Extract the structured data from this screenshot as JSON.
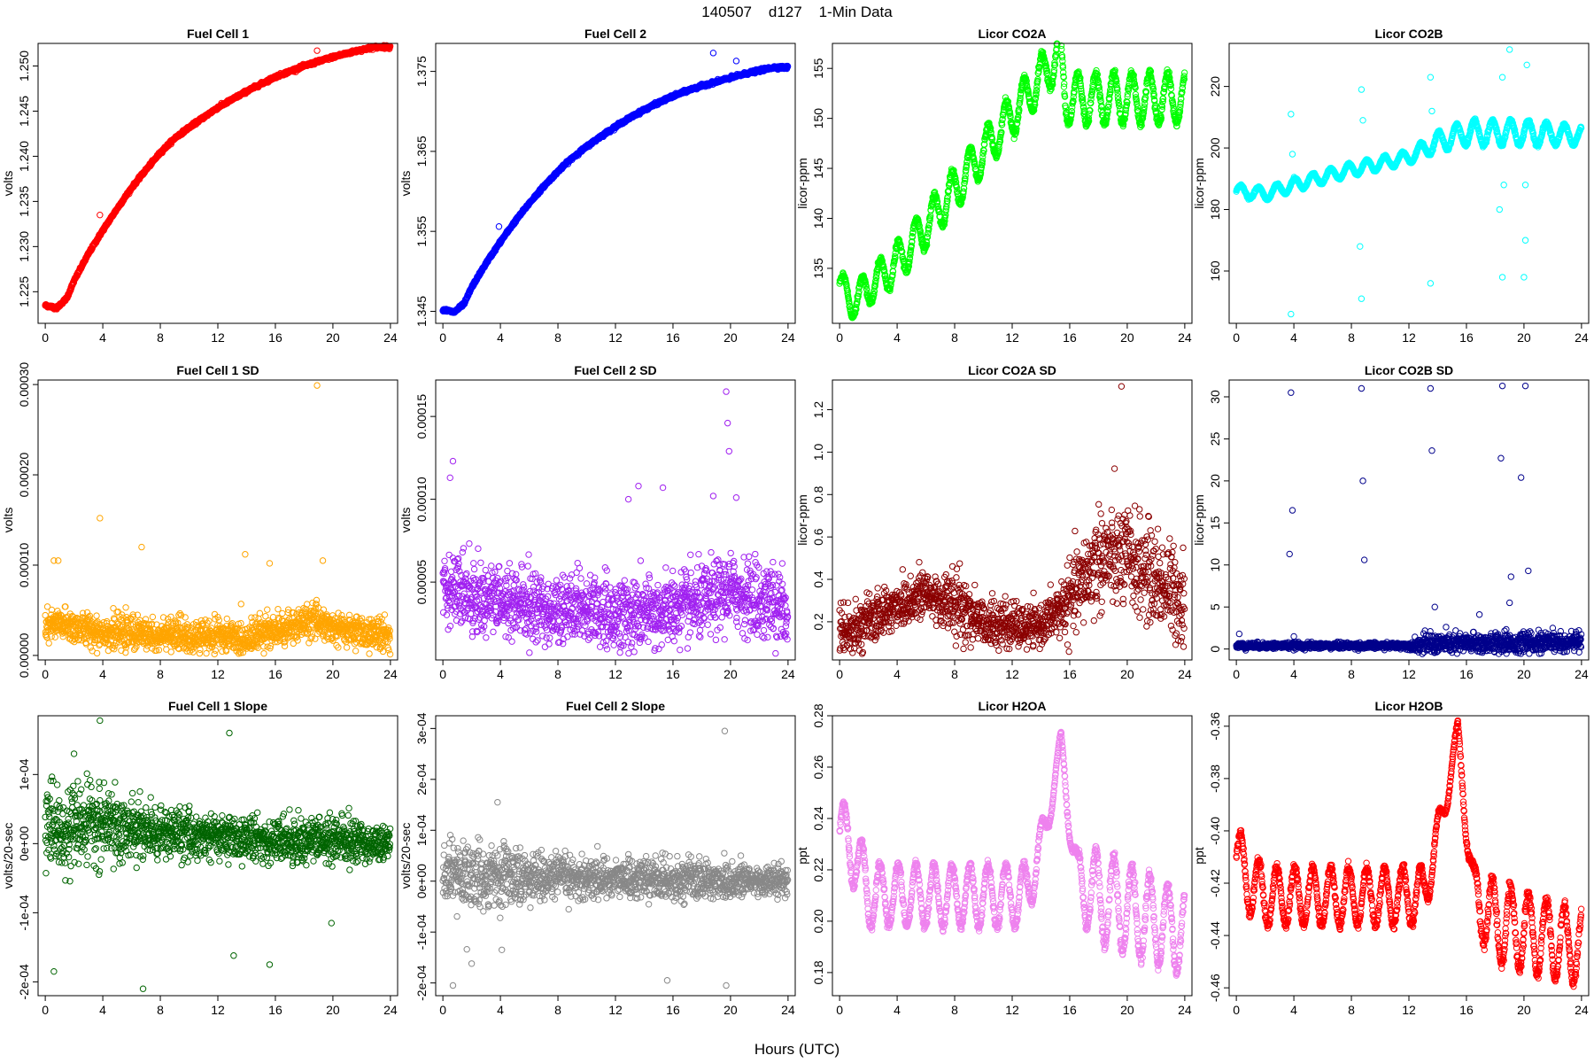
{
  "figure": {
    "title": "140507    d127    1-Min Data",
    "xlabel": "Hours (UTC)"
  },
  "chart_data": [
    {
      "id": "fc1",
      "type": "scatter",
      "title": "Fuel Cell 1",
      "ylabel": "volts",
      "color": "#ff0000",
      "xlim": [
        -0.5,
        24.5
      ],
      "ylim": [
        1.2215,
        1.2525
      ],
      "x_ticks": [
        "0",
        "4",
        "8",
        "12",
        "16",
        "20",
        "24"
      ],
      "y_ticks": [
        {
          "v": 1.225,
          "label": "1.225"
        },
        {
          "v": 1.23,
          "label": "1.230"
        },
        {
          "v": 1.235,
          "label": "1.235"
        },
        {
          "v": 1.24,
          "label": "1.240"
        },
        {
          "v": 1.245,
          "label": "1.245"
        },
        {
          "v": 1.25,
          "label": "1.250"
        }
      ],
      "x": [
        0,
        0.8,
        1.5,
        2,
        3,
        4,
        5,
        6,
        7,
        8,
        9,
        10,
        11,
        12,
        13,
        14,
        15,
        16,
        17,
        18,
        19,
        20,
        21,
        22,
        23,
        24
      ],
      "y": [
        1.2235,
        1.2232,
        1.2243,
        1.2262,
        1.2292,
        1.2318,
        1.2342,
        1.2365,
        1.2385,
        1.2404,
        1.242,
        1.2432,
        1.2443,
        1.2454,
        1.2463,
        1.2472,
        1.248,
        1.2488,
        1.2494,
        1.25,
        1.2505,
        1.251,
        1.2514,
        1.2518,
        1.2521,
        1.2521
      ],
      "outliers": [
        [
          3.8,
          1.2335
        ],
        [
          18.9,
          1.2517
        ],
        [
          20.5,
          1.2512
        ]
      ]
    },
    {
      "id": "fc2",
      "type": "scatter",
      "title": "Fuel Cell 2",
      "ylabel": "volts",
      "color": "#0000ff",
      "xlim": [
        -0.5,
        24.5
      ],
      "ylim": [
        1.3435,
        1.3785
      ],
      "x_ticks": [
        "0",
        "4",
        "8",
        "12",
        "16",
        "20",
        "24"
      ],
      "y_ticks": [
        {
          "v": 1.345,
          "label": "1.345"
        },
        {
          "v": 1.355,
          "label": "1.355"
        },
        {
          "v": 1.365,
          "label": "1.365"
        },
        {
          "v": 1.375,
          "label": "1.375"
        }
      ],
      "x": [
        0,
        0.8,
        1.5,
        2,
        3,
        4,
        5,
        6,
        7,
        8,
        9,
        10,
        11,
        12,
        13,
        14,
        15,
        16,
        17,
        18,
        19,
        20,
        21,
        22,
        23,
        24
      ],
      "y": [
        1.3452,
        1.3449,
        1.346,
        1.348,
        1.351,
        1.3537,
        1.3562,
        1.3585,
        1.3606,
        1.3625,
        1.3642,
        1.3656,
        1.3669,
        1.3681,
        1.3692,
        1.3702,
        1.3711,
        1.3719,
        1.3726,
        1.3732,
        1.3737,
        1.3742,
        1.3747,
        1.3751,
        1.3755,
        1.3755
      ],
      "outliers": [
        [
          3.9,
          1.3556
        ],
        [
          18.8,
          1.3773
        ],
        [
          20.4,
          1.3763
        ]
      ]
    },
    {
      "id": "co2a",
      "type": "scatter",
      "title": "Licor CO2A",
      "ylabel": "licor-ppm",
      "color": "#00ff00",
      "xlim": [
        -0.5,
        24.5
      ],
      "ylim": [
        129.5,
        157.5
      ],
      "x_ticks": [
        "0",
        "4",
        "8",
        "12",
        "16",
        "20",
        "24"
      ],
      "y_ticks": [
        {
          "v": 135,
          "label": "135"
        },
        {
          "v": 140,
          "label": "140"
        },
        {
          "v": 145,
          "label": "145"
        },
        {
          "v": 150,
          "label": "150"
        },
        {
          "v": 155,
          "label": "155"
        }
      ],
      "trend_x": [
        0,
        0.8,
        4,
        15.3,
        15.7,
        24
      ],
      "trend_y": [
        133.5,
        131.5,
        135.5,
        156.5,
        152,
        152
      ],
      "wave_amp": [
        1.5,
        1.5,
        2,
        2.2,
        2.5,
        2.5
      ],
      "wave_period": 1.25
    },
    {
      "id": "co2b",
      "type": "scatter",
      "title": "Licor CO2B",
      "ylabel": "licor-ppm",
      "color": "#00ffff",
      "xlim": [
        -0.5,
        24.5
      ],
      "ylim": [
        143,
        234
      ],
      "x_ticks": [
        "0",
        "4",
        "8",
        "12",
        "16",
        "20",
        "24"
      ],
      "y_ticks": [
        {
          "v": 160,
          "label": "160"
        },
        {
          "v": 180,
          "label": "180"
        },
        {
          "v": 200,
          "label": "200"
        },
        {
          "v": 220,
          "label": "220"
        }
      ],
      "trend_x": [
        0,
        2,
        4,
        8,
        12,
        14,
        16,
        20,
        24
      ],
      "trend_y": [
        186,
        185,
        188,
        193,
        197,
        202,
        205,
        205,
        204
      ],
      "wave_amp": [
        2,
        2,
        2,
        2,
        2,
        3,
        4,
        4,
        3
      ],
      "wave_period": 1.25,
      "outliers": [
        [
          3.8,
          146
        ],
        [
          3.8,
          211
        ],
        [
          3.9,
          198
        ],
        [
          8.7,
          151
        ],
        [
          8.7,
          219
        ],
        [
          8.8,
          209
        ],
        [
          8.6,
          168
        ],
        [
          13.5,
          156
        ],
        [
          13.5,
          223
        ],
        [
          13.6,
          212
        ],
        [
          18.5,
          158
        ],
        [
          18.6,
          188
        ],
        [
          18.5,
          223
        ],
        [
          19.0,
          232
        ],
        [
          20.0,
          158
        ],
        [
          20.1,
          188
        ],
        [
          20.2,
          227
        ],
        [
          18.3,
          180
        ],
        [
          20.1,
          170
        ]
      ]
    },
    {
      "id": "fc1sd",
      "type": "scatter",
      "title": "Fuel Cell 1 SD",
      "ylabel": "volts",
      "color": "#ffa500",
      "xlim": [
        -0.5,
        24.5
      ],
      "ylim": [
        -5e-06,
        0.000305
      ],
      "x_ticks": [
        "0",
        "4",
        "8",
        "12",
        "16",
        "20",
        "24"
      ],
      "y_ticks": [
        {
          "v": 0,
          "label": "0.00000"
        },
        {
          "v": 0.0001,
          "label": "0.00010"
        },
        {
          "v": 0.0002,
          "label": "0.00020"
        },
        {
          "v": 0.0003,
          "label": "0.00030"
        }
      ],
      "base_x": [
        0,
        1,
        3,
        5,
        8,
        12,
        14,
        15,
        16,
        18,
        19,
        20,
        24
      ],
      "base_y": [
        3e-05,
        3.5e-05,
        2.8e-05,
        2.5e-05,
        2.2e-05,
        2e-05,
        1.8e-05,
        2.5e-05,
        2.7e-05,
        3.5e-05,
        4e-05,
        3e-05,
        2.2e-05
      ],
      "spread_x": [
        0,
        24
      ],
      "spread_y": [
        1.5e-05,
        1.5e-05
      ],
      "outliers": [
        [
          0.6,
          0.000105
        ],
        [
          0.9,
          0.000105
        ],
        [
          3.8,
          0.000152
        ],
        [
          6.7,
          0.00012
        ],
        [
          13.9,
          0.000112
        ],
        [
          15.6,
          0.000102
        ],
        [
          19.3,
          0.000105
        ],
        [
          18.9,
          0.000299
        ]
      ]
    },
    {
      "id": "fc2sd",
      "type": "scatter",
      "title": "Fuel Cell 2 SD",
      "ylabel": "volts",
      "color": "#a020f0",
      "xlim": [
        -0.5,
        24.5
      ],
      "ylim": [
        3e-06,
        0.000172
      ],
      "x_ticks": [
        "0",
        "4",
        "8",
        "12",
        "16",
        "20",
        "24"
      ],
      "y_ticks": [
        {
          "v": 5e-05,
          "label": "0.00005"
        },
        {
          "v": 0.0001,
          "label": "0.00010"
        },
        {
          "v": 0.00015,
          "label": "0.00015"
        }
      ],
      "base_x": [
        0,
        1,
        3,
        6,
        10,
        14,
        18,
        20,
        24
      ],
      "base_y": [
        5e-05,
        4.5e-05,
        4e-05,
        3.5e-05,
        3.2e-05,
        3e-05,
        3.7e-05,
        4.5e-05,
        3.3e-05
      ],
      "spread_x": [
        0,
        24
      ],
      "spread_y": [
        1.8e-05,
        1.8e-05
      ],
      "outliers": [
        [
          0.5,
          0.000113
        ],
        [
          0.7,
          0.000123
        ],
        [
          13.6,
          0.000108
        ],
        [
          15.3,
          0.000107
        ],
        [
          12.9,
          0.0001
        ],
        [
          18.8,
          0.000102
        ],
        [
          19.7,
          0.000165
        ],
        [
          19.8,
          0.000146
        ],
        [
          19.9,
          0.000129
        ],
        [
          20.4,
          0.000101
        ]
      ]
    },
    {
      "id": "co2asd",
      "type": "scatter",
      "title": "Licor CO2A SD",
      "ylabel": "licor-ppm",
      "color": "#8b0000",
      "xlim": [
        -0.5,
        24.5
      ],
      "ylim": [
        0.02,
        1.34
      ],
      "x_ticks": [
        "0",
        "4",
        "8",
        "12",
        "16",
        "20",
        "24"
      ],
      "y_ticks": [
        {
          "v": 0.2,
          "label": "0.2"
        },
        {
          "v": 0.4,
          "label": "0.4"
        },
        {
          "v": 0.6,
          "label": "0.6"
        },
        {
          "v": 0.8,
          "label": "0.8"
        },
        {
          "v": 1.0,
          "label": "1.0"
        },
        {
          "v": 1.2,
          "label": "1.2"
        }
      ],
      "base_x": [
        0,
        2,
        4,
        6,
        8,
        10,
        12,
        14,
        16,
        18,
        20,
        22,
        24
      ],
      "base_y": [
        0.15,
        0.2,
        0.28,
        0.33,
        0.28,
        0.2,
        0.17,
        0.18,
        0.3,
        0.5,
        0.5,
        0.4,
        0.3
      ],
      "spread_x": [
        0,
        8,
        14,
        18,
        24
      ],
      "spread_y": [
        0.08,
        0.12,
        0.07,
        0.2,
        0.18
      ],
      "outliers": [
        [
          19.6,
          1.31
        ]
      ]
    },
    {
      "id": "co2bsd",
      "type": "scatter",
      "title": "Licor CO2B SD",
      "ylabel": "licor-ppm",
      "color": "#00008b",
      "xlim": [
        -0.5,
        24.5
      ],
      "ylim": [
        -1.3,
        32
      ],
      "x_ticks": [
        "0",
        "4",
        "8",
        "12",
        "16",
        "20",
        "24"
      ],
      "y_ticks": [
        {
          "v": 0,
          "label": "0"
        },
        {
          "v": 5,
          "label": "5"
        },
        {
          "v": 10,
          "label": "10"
        },
        {
          "v": 15,
          "label": "15"
        },
        {
          "v": 20,
          "label": "20"
        },
        {
          "v": 25,
          "label": "25"
        },
        {
          "v": 30,
          "label": "30"
        }
      ],
      "base_x": [
        0,
        12,
        13,
        24
      ],
      "base_y": [
        0.4,
        0.4,
        0.6,
        0.8
      ],
      "spread_x": [
        0,
        12,
        13,
        24
      ],
      "spread_y": [
        0.3,
        0.3,
        1.0,
        1.0
      ],
      "outliers": [
        [
          0.2,
          1.8
        ],
        [
          3.7,
          11.3
        ],
        [
          3.8,
          30.5
        ],
        [
          3.9,
          16.5
        ],
        [
          4.0,
          1.5
        ],
        [
          8.7,
          31
        ],
        [
          8.8,
          20
        ],
        [
          8.9,
          10.6
        ],
        [
          13.5,
          31
        ],
        [
          13.6,
          23.6
        ],
        [
          13.8,
          5
        ],
        [
          18.5,
          31.3
        ],
        [
          18.4,
          22.7
        ],
        [
          19.1,
          8.6
        ],
        [
          20.1,
          31.3
        ],
        [
          19.8,
          20.4
        ],
        [
          20.3,
          9.3
        ],
        [
          16.9,
          4.1
        ],
        [
          19.0,
          5.5
        ],
        [
          22.0,
          2.5
        ]
      ]
    },
    {
      "id": "fc1slope",
      "type": "scatter",
      "title": "Fuel Cell 1 Slope",
      "ylabel": "volts/20-sec",
      "color": "#006400",
      "xlim": [
        -0.5,
        24.5
      ],
      "ylim": [
        -0.00022,
        0.000185
      ],
      "x_ticks": [
        "0",
        "4",
        "8",
        "12",
        "16",
        "20",
        "24"
      ],
      "y_ticks": [
        {
          "v": -0.0002,
          "label": "-2e-04"
        },
        {
          "v": -0.0001,
          "label": "-1e-04"
        },
        {
          "v": 0,
          "label": "0e+00"
        },
        {
          "v": 0.0001,
          "label": "1e-04"
        }
      ],
      "base_x": [
        0,
        2,
        4,
        8,
        12,
        16,
        20,
        24
      ],
      "base_y": [
        2e-05,
        2.5e-05,
        2.5e-05,
        1.5e-05,
        1e-05,
        5e-06,
        5e-06,
        0
      ],
      "spread_x": [
        0,
        3,
        8,
        16,
        20,
        24
      ],
      "spread_y": [
        4.5e-05,
        4.5e-05,
        3e-05,
        2.5e-05,
        3e-05,
        2e-05
      ],
      "outliers": [
        [
          0.6,
          -0.000185
        ],
        [
          3.8,
          0.000178
        ],
        [
          6.8,
          -0.00021
        ],
        [
          12.8,
          0.00016
        ],
        [
          13.1,
          -0.000162
        ],
        [
          15.6,
          -0.000175
        ],
        [
          2,
          0.00013
        ],
        [
          19.9,
          -0.000115
        ]
      ]
    },
    {
      "id": "fc2slope",
      "type": "scatter",
      "title": "Fuel Cell 2 Slope",
      "ylabel": "volts/20-sec",
      "color": "#888888",
      "xlim": [
        -0.5,
        24.5
      ],
      "ylim": [
        -0.000225,
        0.000325
      ],
      "x_ticks": [
        "0",
        "4",
        "8",
        "12",
        "16",
        "20",
        "24"
      ],
      "y_ticks": [
        {
          "v": -0.0002,
          "label": "-2e-04"
        },
        {
          "v": -0.0001,
          "label": "-1e-04"
        },
        {
          "v": 0,
          "label": "0e+00"
        },
        {
          "v": 0.0001,
          "label": "1e-04"
        },
        {
          "v": 0.0002,
          "label": "2e-04"
        },
        {
          "v": 0.0003,
          "label": "3e-04"
        }
      ],
      "base_x": [
        0,
        4,
        12,
        24
      ],
      "base_y": [
        1e-05,
        1e-05,
        5e-06,
        0
      ],
      "spread_x": [
        0,
        3,
        8,
        16,
        20,
        24
      ],
      "spread_y": [
        5e-05,
        5e-05,
        3.5e-05,
        3e-05,
        3.5e-05,
        2e-05
      ],
      "outliers": [
        [
          0.7,
          -0.000205
        ],
        [
          19.6,
          0.000295
        ],
        [
          19.7,
          -0.000205
        ],
        [
          15.6,
          -0.000195
        ],
        [
          4.1,
          -0.000135
        ],
        [
          3.8,
          0.000155
        ],
        [
          2,
          -0.000162
        ]
      ]
    },
    {
      "id": "h2oa",
      "type": "scatter",
      "title": "Licor H2OA",
      "ylabel": "ppt",
      "color": "#ee82ee",
      "xlim": [
        -0.5,
        24.5
      ],
      "ylim": [
        0.171,
        0.28
      ],
      "x_ticks": [
        "0",
        "4",
        "8",
        "12",
        "16",
        "20",
        "24"
      ],
      "y_ticks": [
        {
          "v": 0.18,
          "label": "0.18"
        },
        {
          "v": 0.2,
          "label": "0.20"
        },
        {
          "v": 0.22,
          "label": "0.22"
        },
        {
          "v": 0.24,
          "label": "0.24"
        },
        {
          "v": 0.26,
          "label": "0.26"
        },
        {
          "v": 0.28,
          "label": "0.28"
        }
      ],
      "trend_x": [
        0,
        1,
        2,
        4,
        13,
        14.5,
        15.4,
        16.5,
        18,
        24
      ],
      "trend_y": [
        0.235,
        0.228,
        0.21,
        0.21,
        0.21,
        0.24,
        0.27,
        0.215,
        0.21,
        0.195
      ],
      "wave_amp": [
        0.012,
        0.015,
        0.012,
        0.012,
        0.012,
        0.006,
        0.004,
        0.012,
        0.018,
        0.016
      ],
      "wave_period": 1.25
    },
    {
      "id": "h2ob",
      "type": "scatter",
      "title": "Licor H2OB",
      "ylabel": "ppt",
      "color": "#ff0000",
      "xlim": [
        -0.5,
        24.5
      ],
      "ylim": [
        -0.463,
        -0.356
      ],
      "x_ticks": [
        "0",
        "4",
        "8",
        "12",
        "16",
        "20",
        "24"
      ],
      "y_ticks": [
        {
          "v": -0.46,
          "label": "-0.46"
        },
        {
          "v": -0.44,
          "label": "-0.44"
        },
        {
          "v": -0.42,
          "label": "-0.42"
        },
        {
          "v": -0.4,
          "label": "-0.40"
        },
        {
          "v": -0.38,
          "label": "-0.38"
        },
        {
          "v": -0.36,
          "label": "-0.36"
        }
      ],
      "trend_x": [
        0,
        1,
        2,
        4,
        13,
        14.5,
        15.4,
        16.5,
        18,
        24
      ],
      "trend_y": [
        -0.41,
        -0.42,
        -0.425,
        -0.425,
        -0.425,
        -0.39,
        -0.362,
        -0.425,
        -0.435,
        -0.445
      ],
      "wave_amp": [
        0.012,
        0.012,
        0.011,
        0.011,
        0.011,
        0.006,
        0.004,
        0.012,
        0.016,
        0.014
      ],
      "wave_period": 1.25
    }
  ]
}
